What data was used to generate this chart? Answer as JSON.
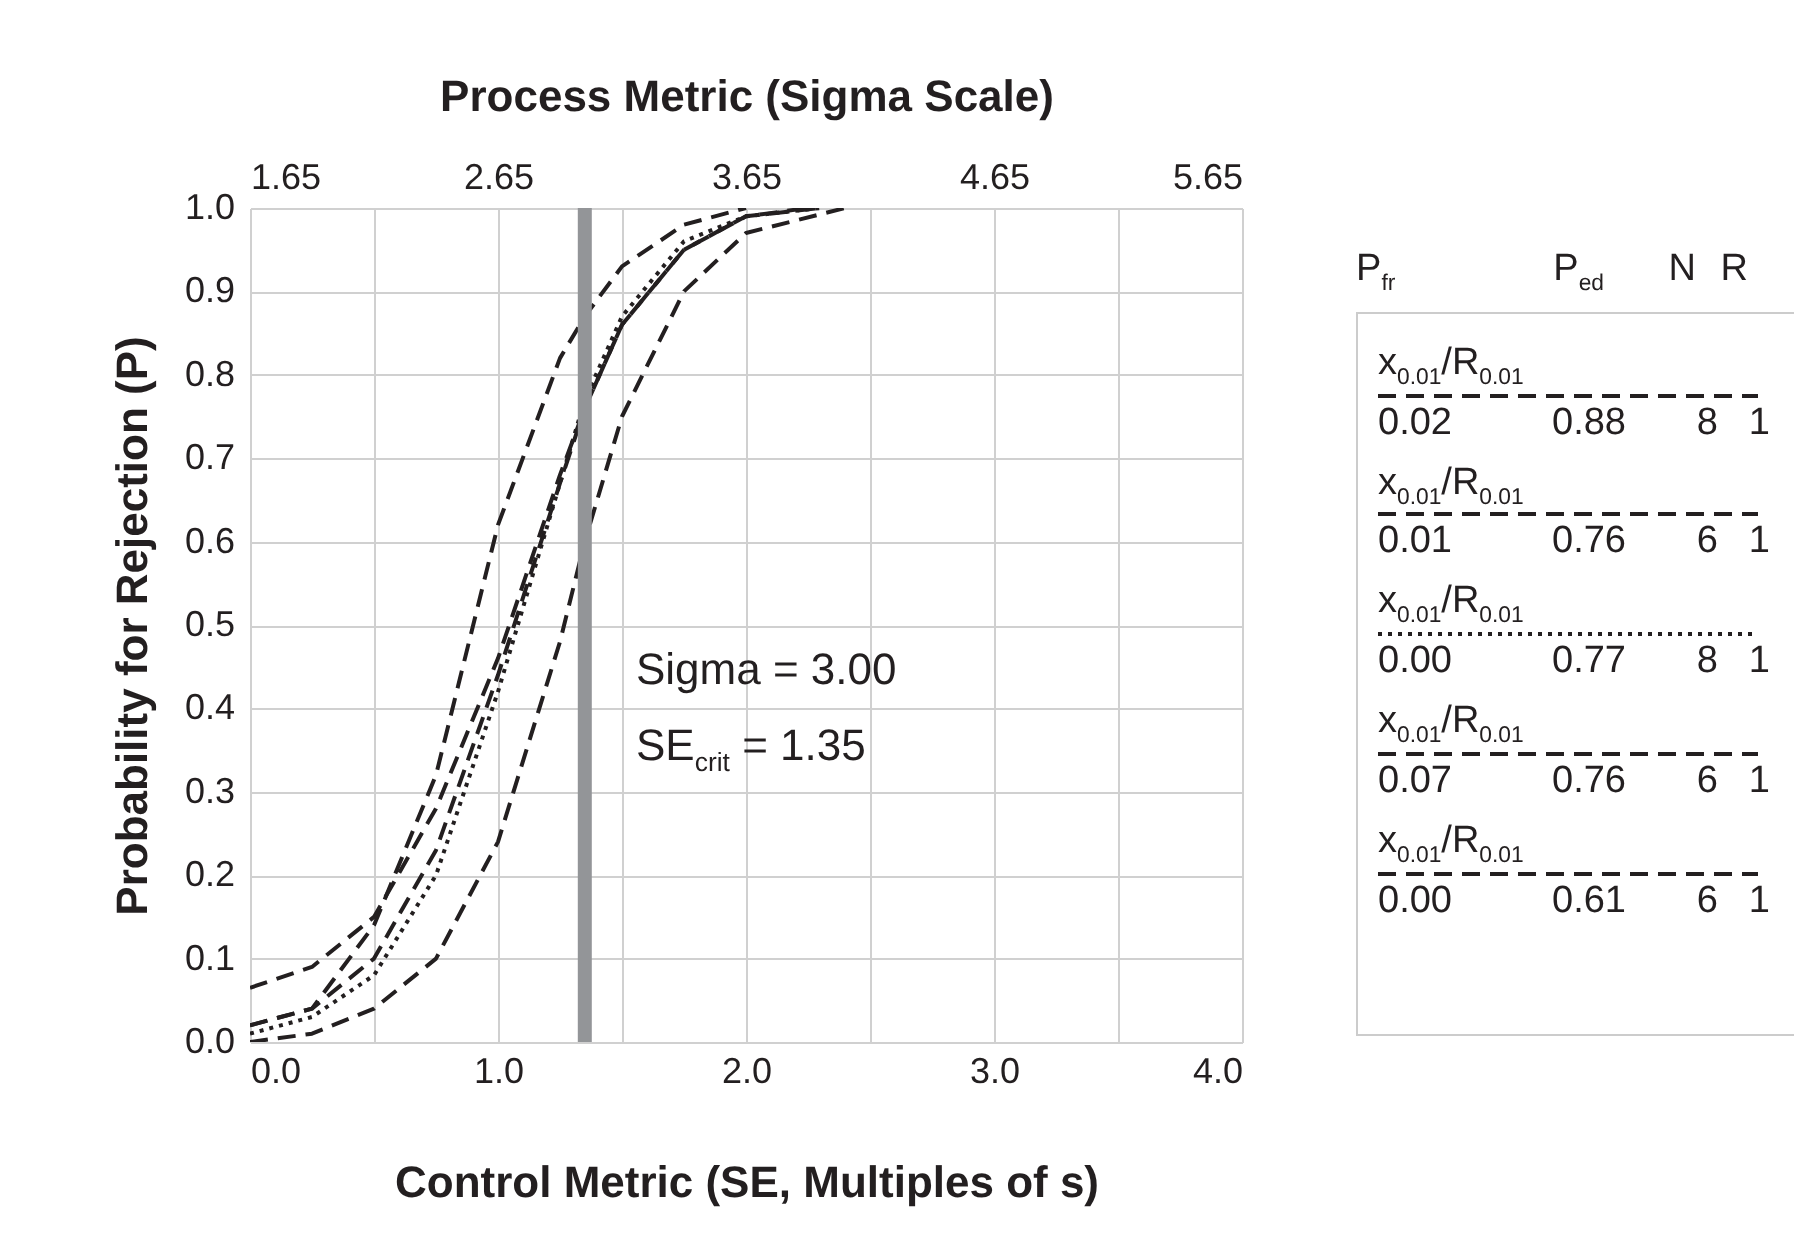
{
  "chart_data": {
    "type": "line",
    "xlabel": "Control Metric (SE, Multiples of s)",
    "x2label": "Process Metric (Sigma Scale)",
    "ylabel": "Probability for Rejection (P)",
    "xlim": [
      0,
      4
    ],
    "xticks": [
      {
        "value": 0,
        "label": "0.0"
      },
      {
        "value": 0.5,
        "label": null
      },
      {
        "value": 1,
        "label": "1.0"
      },
      {
        "value": 1.5,
        "label": null
      },
      {
        "value": 2,
        "label": "2.0"
      },
      {
        "value": 2.5,
        "label": null
      },
      {
        "value": 3,
        "label": "3.0"
      },
      {
        "value": 3.5,
        "label": null
      },
      {
        "value": 4,
        "label": "4.0"
      }
    ],
    "x2lim": [
      1.65,
      5.65
    ],
    "x2ticks": [
      1.65,
      2.65,
      3.65,
      4.65,
      5.65
    ],
    "ylim": [
      0,
      1
    ],
    "yticks": [
      {
        "value": 0,
        "label": "0.0"
      },
      0.1,
      0.2,
      0.3,
      0.4,
      0.5,
      0.6,
      0.7,
      0.8,
      0.9,
      {
        "value": 1,
        "label": "1.0"
      }
    ],
    "grid": true,
    "legend": "right",
    "legend_title": "P$_{fr}$ P$_{ed}$ N R",
    "marker": "none",
    "ref_lines": [
      {
        "axis": "x",
        "value": 1.35,
        "color": "#939598"
      }
    ],
    "annotations": [
      "Sigma = 3.00",
      "SE$_{crit}$ = 1.35",
      "0.02 0.88 8 1",
      "0.01 0.76 6 1",
      "0.00 0.77 8 1",
      "0.07 0.76 6 1",
      "0.00 0.61 6 1"
    ],
    "series": [
      {
        "name": "x$_{0.01}$/R$_{0.01}$",
        "color": "#231f20",
        "line_style": "dashed",
        "x": [
          0,
          0.25,
          0.5,
          0.75,
          1,
          1.25,
          1.35,
          1.5,
          1.75,
          2
        ],
        "values": [
          0.02,
          0.04,
          0.14,
          0.32,
          0.62,
          0.82,
          0.87,
          0.93,
          0.98,
          1
        ]
      },
      {
        "name": "x$_{0.01}$/R$_{0.01}$",
        "color": "#231f20",
        "line_style": "dashed",
        "x": [
          0,
          0.25,
          0.5,
          0.75,
          1,
          1.25,
          1.35,
          1.5,
          1.75,
          2,
          2.25
        ],
        "values": [
          0.02,
          0.04,
          0.1,
          0.23,
          0.44,
          0.67,
          0.76,
          0.86,
          0.95,
          0.99,
          1
        ]
      },
      {
        "name": "x$_{0.01}$/R$_{0.01}$",
        "color": "#231f20",
        "line_style": "dotted",
        "x": [
          0,
          0.25,
          0.5,
          0.75,
          1,
          1.25,
          1.35,
          1.5,
          1.75,
          2,
          2.3
        ],
        "values": [
          0.01,
          0.03,
          0.08,
          0.2,
          0.42,
          0.67,
          0.77,
          0.87,
          0.96,
          0.99,
          1
        ]
      },
      {
        "name": "x$_{0.01}$/R$_{0.01}$",
        "color": "#231f20",
        "line_style": "dashed",
        "x": [
          0,
          0.25,
          0.5,
          0.75,
          1,
          1.25,
          1.35,
          1.5,
          1.75,
          2,
          2.3
        ],
        "values": [
          0.065,
          0.09,
          0.15,
          0.28,
          0.46,
          0.68,
          0.76,
          0.86,
          0.95,
          0.99,
          1
        ]
      },
      {
        "name": "x$_{0.01}$/R$_{0.01}$",
        "color": "#231f20",
        "line_style": "dashed",
        "x": [
          0,
          0.25,
          0.5,
          0.75,
          1,
          1.25,
          1.35,
          1.5,
          1.75,
          2,
          2.4
        ],
        "values": [
          0,
          0.01,
          0.04,
          0.1,
          0.24,
          0.48,
          0.6,
          0.75,
          0.9,
          0.97,
          1
        ]
      }
    ]
  }
}
